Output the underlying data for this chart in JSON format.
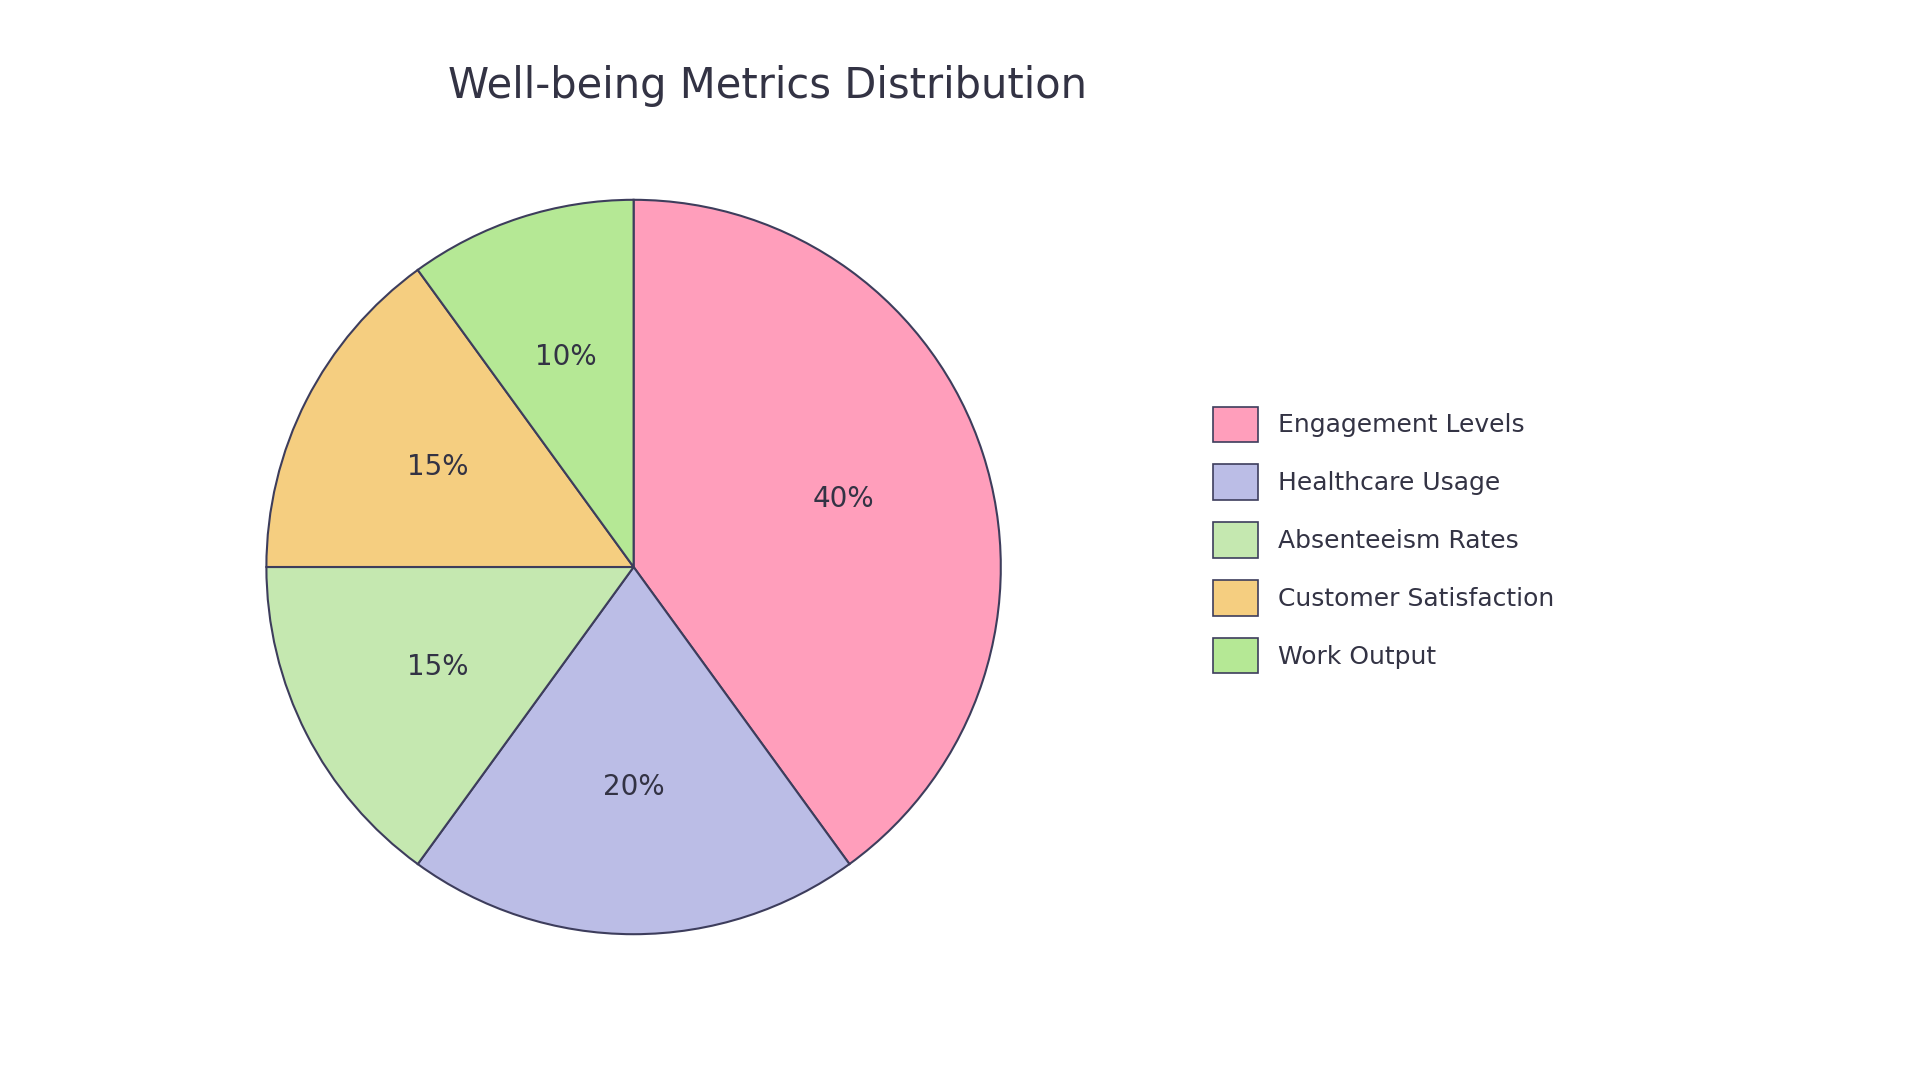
{
  "title": "Well-being Metrics Distribution",
  "labels": [
    "Engagement Levels",
    "Healthcare Usage",
    "Absenteeism Rates",
    "Customer Satisfaction",
    "Work Output"
  ],
  "values": [
    40,
    20,
    15,
    15,
    10
  ],
  "colors": [
    "#FF9EBB",
    "#BBBDE6",
    "#C5E8B0",
    "#F5CE80",
    "#B5E895"
  ],
  "pct_labels": [
    "40%",
    "20%",
    "15%",
    "15%",
    "10%"
  ],
  "edge_color": "#3d3d5c",
  "edge_width": 1.5,
  "title_fontsize": 30,
  "pct_fontsize": 20,
  "background_color": "#ffffff",
  "text_color": "#333344",
  "startangle": 90,
  "legend_fontsize": 18
}
